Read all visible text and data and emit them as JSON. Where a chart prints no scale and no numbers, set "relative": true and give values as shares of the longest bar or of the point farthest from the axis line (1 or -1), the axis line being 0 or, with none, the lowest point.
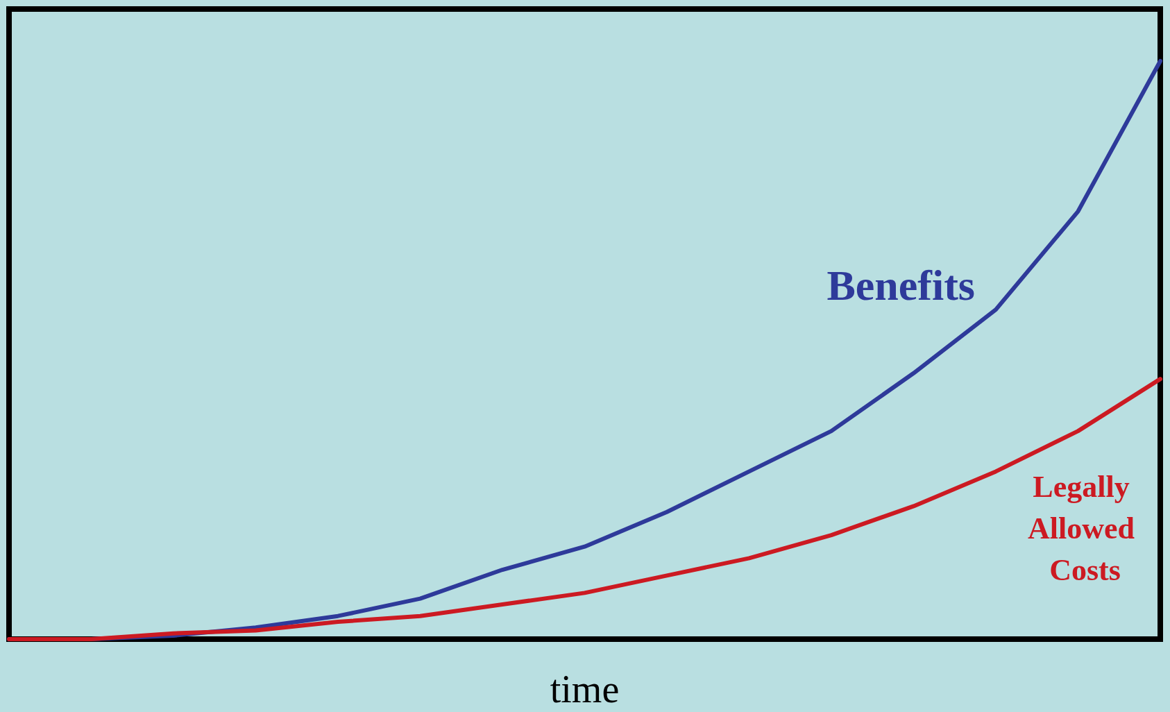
{
  "chart_data": {
    "type": "line",
    "relative": true,
    "xlabel": "time",
    "categories": [
      null,
      null,
      null,
      null,
      null,
      null,
      null,
      null,
      null,
      null,
      null,
      null,
      null,
      null,
      null
    ],
    "series": [
      {
        "name": "Benefits",
        "color": "#2e3a9a",
        "values": [
          0,
          0,
          0.006,
          0.02,
          0.04,
          0.07,
          0.12,
          0.16,
          0.22,
          0.29,
          0.36,
          0.46,
          0.57,
          0.74,
          1
        ]
      },
      {
        "name": "Legally Allowed Costs",
        "color": "#cc1a22",
        "values": [
          0,
          0,
          0.01,
          0.015,
          0.03,
          0.04,
          0.06,
          0.08,
          0.11,
          0.14,
          0.18,
          0.23,
          0.29,
          0.36,
          0.45
        ]
      }
    ],
    "legend": false,
    "marker": "none",
    "line_style": "solid",
    "grid": false
  }
}
